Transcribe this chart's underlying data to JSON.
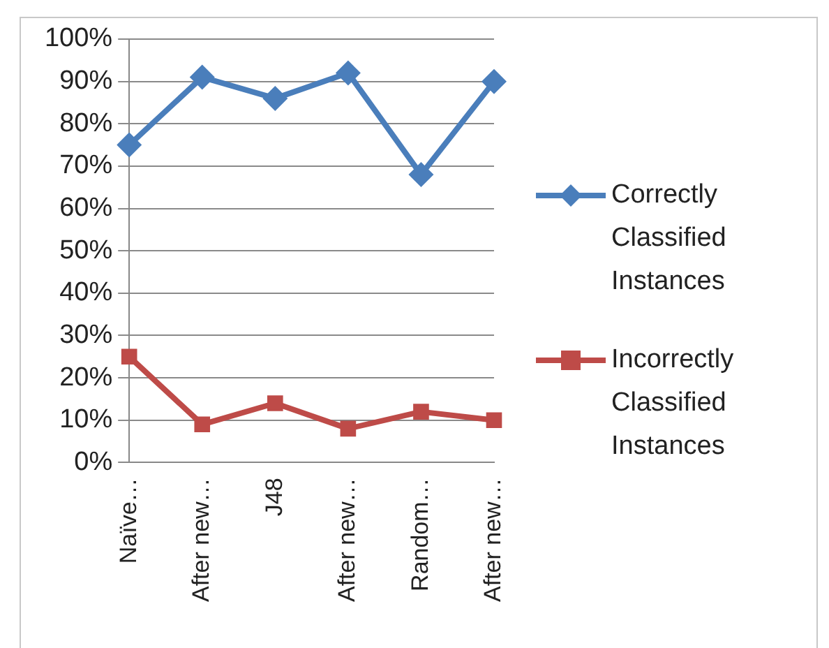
{
  "chart_data": {
    "type": "line",
    "categories": [
      "Naïve…",
      "After new…",
      "J48",
      "After new…",
      "Random…",
      "After new…"
    ],
    "series": [
      {
        "name": "Correctly Classified Instances",
        "color": "#4a7ebb",
        "marker": "diamond",
        "values": [
          75,
          91,
          86,
          92,
          68,
          90
        ]
      },
      {
        "name": "Incorrectly Classified Instances",
        "color": "#be4b48",
        "marker": "square",
        "values": [
          25,
          9,
          14,
          8,
          12,
          10
        ]
      }
    ],
    "ylim": [
      0,
      100
    ],
    "yticks": [
      {
        "value": 0,
        "label": "0%"
      },
      {
        "value": 10,
        "label": "10%"
      },
      {
        "value": 20,
        "label": "20%"
      },
      {
        "value": 30,
        "label": "30%"
      },
      {
        "value": 40,
        "label": "40%"
      },
      {
        "value": 50,
        "label": "50%"
      },
      {
        "value": 60,
        "label": "60%"
      },
      {
        "value": 70,
        "label": "70%"
      },
      {
        "value": 80,
        "label": "80%"
      },
      {
        "value": 90,
        "label": "90%"
      },
      {
        "value": 100,
        "label": "100%"
      }
    ],
    "grid": "y",
    "legend": "right",
    "line_style": "solid"
  }
}
